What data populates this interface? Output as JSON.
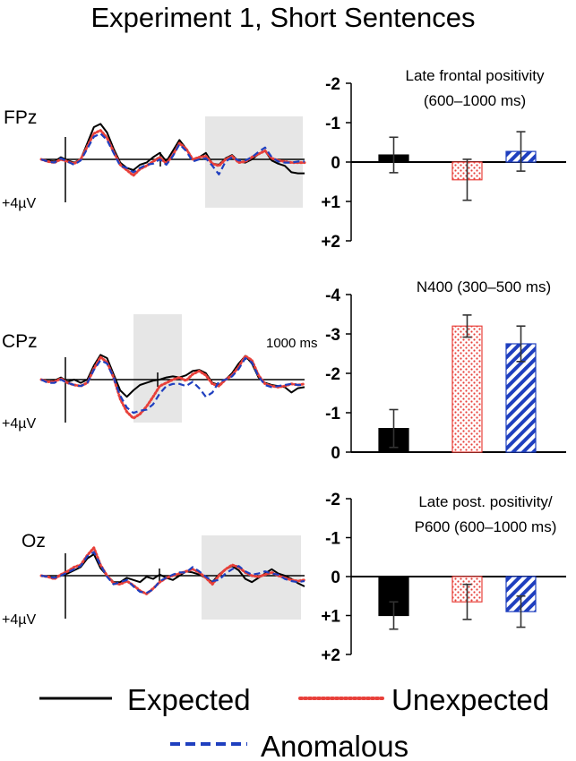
{
  "title": "Experiment 1, Short Sentences",
  "colors": {
    "expected": "#000000",
    "unexpected": "#e8403a",
    "anomalous": "#1f3fbf",
    "highlight": "#e6e6e6"
  },
  "legend": [
    {
      "key": "expected",
      "label": "Expected",
      "style": "solid"
    },
    {
      "key": "unexpected",
      "label": "Unexpected",
      "style": "dotted"
    },
    {
      "key": "anomalous",
      "label": "Anomalous",
      "style": "dashed"
    }
  ],
  "voltage_label": "+4µV",
  "time_label": "1000 ms",
  "chart_data": [
    {
      "type": "line",
      "electrode": "FPz",
      "highlight_window": "600–1000 ms",
      "series": [
        {
          "name": "Expected",
          "y": [
            0.0,
            -0.1,
            -0.2,
            0.2,
            -0.1,
            -0.3,
            0.0,
            1.5,
            3.0,
            3.3,
            2.5,
            1.0,
            -0.3,
            -0.8,
            -1.0,
            -0.5,
            -0.3,
            0.2,
            0.6,
            -0.2,
            0.8,
            1.8,
            1.0,
            0.0,
            0.2,
            0.6,
            -0.4,
            -0.5,
            0.1,
            0.4,
            -0.2,
            -0.3,
            0.0,
            0.5,
            0.8,
            -0.1,
            -0.4,
            -0.6,
            -1.2,
            -1.3,
            -1.3
          ]
        },
        {
          "name": "Unexpected",
          "y": [
            0.0,
            -0.2,
            -0.3,
            0.0,
            -0.2,
            -0.4,
            0.0,
            1.2,
            2.4,
            2.7,
            2.0,
            0.7,
            -0.5,
            -1.0,
            -1.5,
            -0.9,
            -0.6,
            -0.2,
            0.2,
            -0.4,
            0.4,
            1.5,
            1.0,
            0.0,
            0.2,
            0.3,
            -0.4,
            -0.6,
            0.0,
            0.3,
            -0.3,
            -0.2,
            0.2,
            0.5,
            0.8,
            0.1,
            -0.1,
            -0.2,
            -0.3,
            -0.3,
            -0.3
          ]
        },
        {
          "name": "Anomalous",
          "y": [
            0.0,
            -0.2,
            -0.3,
            0.1,
            -0.2,
            -0.5,
            -0.1,
            1.0,
            2.1,
            2.4,
            1.8,
            0.6,
            -0.6,
            -0.8,
            -1.2,
            -0.8,
            -0.5,
            -0.4,
            0.0,
            -0.5,
            0.3,
            1.4,
            0.8,
            -0.2,
            0.0,
            0.1,
            -0.6,
            -1.4,
            -0.2,
            0.2,
            -0.1,
            -0.1,
            0.2,
            0.7,
            1.1,
            0.2,
            -0.2,
            -0.3,
            -0.3,
            -0.2,
            -0.2
          ]
        }
      ]
    },
    {
      "type": "line",
      "electrode": "CPz",
      "highlight_window": "300–500 ms",
      "series": [
        {
          "name": "Expected",
          "y": [
            0.0,
            -0.2,
            -0.1,
            0.2,
            -0.2,
            0.0,
            -0.3,
            0.0,
            1.3,
            2.3,
            2.0,
            0.5,
            -1.0,
            -1.6,
            -1.0,
            -0.5,
            -0.3,
            -0.1,
            0.0,
            0.2,
            0.3,
            0.2,
            0.4,
            0.8,
            0.9,
            0.6,
            -0.3,
            -0.5,
            0.0,
            0.6,
            1.5,
            2.2,
            1.5,
            0.2,
            -0.3,
            -0.5,
            -0.6,
            -0.7,
            -1.2,
            -0.8,
            -0.7
          ]
        },
        {
          "name": "Unexpected",
          "y": [
            0.0,
            -0.2,
            -0.2,
            0.1,
            -0.3,
            -0.5,
            -0.6,
            -0.3,
            1.0,
            2.1,
            1.6,
            0.2,
            -1.8,
            -3.0,
            -3.6,
            -3.2,
            -2.5,
            -1.6,
            -0.6,
            -0.3,
            0.0,
            0.2,
            -0.1,
            0.5,
            0.8,
            0.4,
            -0.4,
            -0.6,
            0.0,
            0.4,
            1.2,
            2.2,
            1.8,
            0.4,
            -0.4,
            -0.6,
            -0.7,
            -0.6,
            -0.4,
            -0.5,
            -0.4
          ]
        },
        {
          "name": "Anomalous",
          "y": [
            0.0,
            -0.3,
            -0.3,
            0.0,
            -0.3,
            -0.5,
            -0.6,
            -0.3,
            0.9,
            1.8,
            1.5,
            0.2,
            -1.5,
            -2.6,
            -3.1,
            -2.9,
            -2.8,
            -2.3,
            -1.3,
            -0.6,
            -0.4,
            -0.4,
            -0.6,
            -0.2,
            -0.8,
            -1.6,
            -1.2,
            -0.2,
            0.0,
            0.3,
            1.0,
            2.0,
            1.6,
            0.3,
            -0.5,
            -0.7,
            -0.6,
            -0.5,
            -0.4,
            -0.5,
            -0.5
          ]
        }
      ]
    },
    {
      "type": "line",
      "electrode": "Oz",
      "highlight_window": "600–1000 ms",
      "series": [
        {
          "name": "Expected",
          "y": [
            0.0,
            -0.1,
            -0.2,
            0.0,
            0.2,
            0.5,
            0.8,
            1.6,
            2.0,
            0.7,
            0.0,
            -0.6,
            -0.6,
            -0.2,
            -0.4,
            -0.6,
            -0.1,
            -0.3,
            0.1,
            -0.2,
            -0.4,
            0.0,
            0.4,
            0.3,
            0.1,
            -0.2,
            -0.6,
            0.1,
            0.6,
            0.9,
            0.5,
            -0.3,
            -0.6,
            -0.2,
            0.2,
            0.6,
            0.2,
            0.0,
            -0.3,
            -0.7,
            -1.0
          ]
        },
        {
          "name": "Unexpected",
          "y": [
            0.0,
            -0.1,
            -0.3,
            0.1,
            0.4,
            0.8,
            1.0,
            1.9,
            2.6,
            1.0,
            0.0,
            -0.7,
            -0.8,
            -0.5,
            -0.9,
            -1.4,
            -1.7,
            -1.2,
            -0.6,
            -0.2,
            0.0,
            0.2,
            0.4,
            0.6,
            0.3,
            -0.2,
            -0.8,
            0.0,
            0.6,
            1.0,
            0.8,
            0.3,
            0.0,
            -0.1,
            0.1,
            0.3,
            0.0,
            -0.2,
            -0.4,
            -0.5,
            -0.4
          ]
        },
        {
          "name": "Anomalous",
          "y": [
            0.0,
            -0.1,
            -0.2,
            0.0,
            0.3,
            0.6,
            0.9,
            1.8,
            2.2,
            1.0,
            -0.1,
            -0.8,
            -0.6,
            -0.4,
            -1.0,
            -1.5,
            -1.6,
            -1.3,
            -0.5,
            -0.2,
            0.1,
            0.3,
            0.3,
            0.8,
            0.4,
            -0.1,
            -0.5,
            -0.4,
            0.2,
            0.6,
            0.9,
            0.4,
            0.1,
            0.2,
            0.4,
            0.2,
            0.1,
            -0.3,
            -0.5,
            -0.6,
            -0.5
          ]
        }
      ]
    },
    {
      "type": "bar",
      "title": "Late frontal positivity\n(600–1000 ms)",
      "categories": [
        "Expected",
        "Unexpected",
        "Anomalous"
      ],
      "values": [
        -0.18,
        0.45,
        -0.27
      ],
      "errors": [
        0.45,
        0.52,
        0.5
      ],
      "ylim": [
        2,
        -2
      ],
      "yticks": [
        "-2",
        "-1",
        "0",
        "+1",
        "+2"
      ]
    },
    {
      "type": "bar",
      "title": "N400 (300–500 ms)",
      "categories": [
        "Expected",
        "Unexpected",
        "Anomalous"
      ],
      "values": [
        -0.6,
        -3.2,
        -2.75
      ],
      "errors": [
        0.48,
        0.28,
        0.45
      ],
      "ylim": [
        0,
        -4
      ],
      "yticks": [
        "-4",
        "-3",
        "-2",
        "-1",
        "0"
      ]
    },
    {
      "type": "bar",
      "title": "Late post. positivity/\nP600 (600–1000 ms)",
      "categories": [
        "Expected",
        "Unexpected",
        "Anomalous"
      ],
      "values": [
        1.0,
        0.65,
        0.9
      ],
      "errors": [
        0.35,
        0.45,
        0.4
      ],
      "ylim": [
        2,
        -2
      ],
      "yticks": [
        "-2",
        "-1",
        "0",
        "+1",
        "+2"
      ]
    }
  ]
}
